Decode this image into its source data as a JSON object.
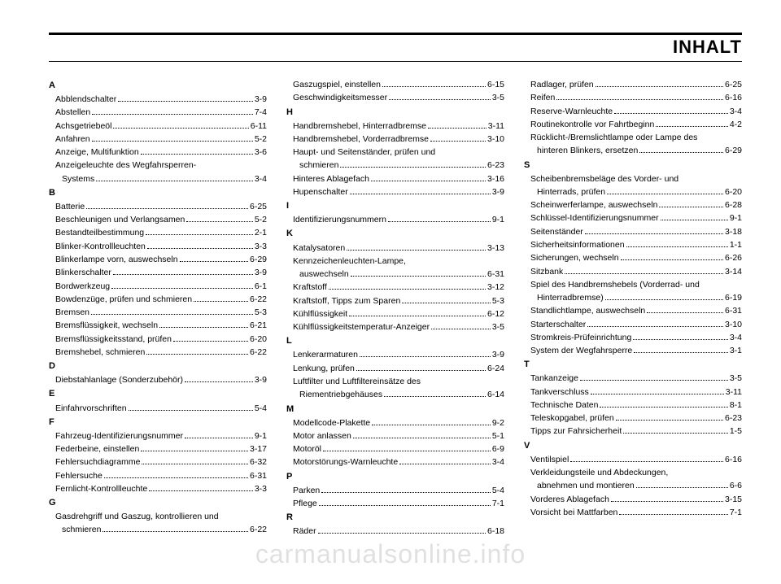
{
  "title": "INHALT",
  "watermark": "carmanualsonline.info",
  "columns": [
    [
      {
        "type": "letter",
        "text": "A"
      },
      {
        "type": "entry",
        "label": "Abblendschalter",
        "page": "3-9"
      },
      {
        "type": "entry",
        "label": "Abstellen",
        "page": "7-4"
      },
      {
        "type": "entry",
        "label": "Achsgetriebeöl",
        "page": "6-11"
      },
      {
        "type": "entry",
        "label": "Anfahren",
        "page": "5-2"
      },
      {
        "type": "entry",
        "label": "Anzeige, Multifunktion",
        "page": "3-6"
      },
      {
        "type": "line",
        "text": "Anzeigeleuchte des Wegfahrsperren-"
      },
      {
        "type": "entry",
        "label": "Systems",
        "page": "3-4",
        "cont": true
      },
      {
        "type": "letter",
        "text": "B"
      },
      {
        "type": "entry",
        "label": "Batterie",
        "page": "6-25"
      },
      {
        "type": "entry",
        "label": "Beschleunigen und Verlangsamen",
        "page": "5-2"
      },
      {
        "type": "entry",
        "label": "Bestandteilbestimmung",
        "page": "2-1"
      },
      {
        "type": "entry",
        "label": "Blinker-Kontrollleuchten",
        "page": "3-3"
      },
      {
        "type": "entry",
        "label": "Blinkerlampe vorn, auswechseln",
        "page": "6-29"
      },
      {
        "type": "entry",
        "label": "Blinkerschalter",
        "page": "3-9"
      },
      {
        "type": "entry",
        "label": "Bordwerkzeug",
        "page": "6-1"
      },
      {
        "type": "entry",
        "label": "Bowdenzüge, prüfen und schmieren",
        "page": "6-22"
      },
      {
        "type": "entry",
        "label": "Bremsen",
        "page": "5-3"
      },
      {
        "type": "entry",
        "label": "Bremsflüssigkeit, wechseln",
        "page": "6-21"
      },
      {
        "type": "entry",
        "label": "Bremsflüssigkeitsstand, prüfen",
        "page": "6-20"
      },
      {
        "type": "entry",
        "label": "Bremshebel, schmieren",
        "page": "6-22"
      },
      {
        "type": "letter",
        "text": "D"
      },
      {
        "type": "entry",
        "label": "Diebstahlanlage (Sonderzubehör)",
        "page": "3-9"
      },
      {
        "type": "letter",
        "text": "E"
      },
      {
        "type": "entry",
        "label": "Einfahrvorschriften",
        "page": "5-4"
      },
      {
        "type": "letter",
        "text": "F"
      },
      {
        "type": "entry",
        "label": "Fahrzeug-Identifizierungsnummer",
        "page": "9-1"
      },
      {
        "type": "entry",
        "label": "Federbeine, einstellen",
        "page": "3-17"
      },
      {
        "type": "entry",
        "label": "Fehlersuchdiagramme",
        "page": "6-32"
      },
      {
        "type": "entry",
        "label": "Fehlersuche",
        "page": "6-31"
      },
      {
        "type": "entry",
        "label": "Fernlicht-Kontrollleuchte",
        "page": "3-3"
      },
      {
        "type": "letter",
        "text": "G"
      },
      {
        "type": "line",
        "text": "Gasdrehgriff und Gaszug, kontrollieren und"
      },
      {
        "type": "entry",
        "label": "schmieren",
        "page": "6-22",
        "cont": true
      }
    ],
    [
      {
        "type": "entry",
        "label": "Gaszugspiel, einstellen",
        "page": "6-15"
      },
      {
        "type": "entry",
        "label": "Geschwindigkeitsmesser",
        "page": "3-5"
      },
      {
        "type": "letter",
        "text": "H"
      },
      {
        "type": "entry",
        "label": "Handbremshebel, Hinterradbremse",
        "page": "3-11"
      },
      {
        "type": "entry",
        "label": "Handbremshebel, Vorderradbremse",
        "page": "3-10"
      },
      {
        "type": "line",
        "text": "Haupt- und Seitenständer, prüfen und"
      },
      {
        "type": "entry",
        "label": "schmieren",
        "page": "6-23",
        "cont": true
      },
      {
        "type": "entry",
        "label": "Hinteres Ablagefach",
        "page": "3-16"
      },
      {
        "type": "entry",
        "label": "Hupenschalter",
        "page": "3-9"
      },
      {
        "type": "letter",
        "text": "I"
      },
      {
        "type": "entry",
        "label": "Identifizierungsnummern",
        "page": "9-1"
      },
      {
        "type": "letter",
        "text": "K"
      },
      {
        "type": "entry",
        "label": "Katalysatoren",
        "page": "3-13"
      },
      {
        "type": "line",
        "text": "Kennzeichenleuchten-Lampe,"
      },
      {
        "type": "entry",
        "label": "auswechseln",
        "page": "6-31",
        "cont": true
      },
      {
        "type": "entry",
        "label": "Kraftstoff",
        "page": "3-12"
      },
      {
        "type": "entry",
        "label": "Kraftstoff, Tipps zum Sparen",
        "page": "5-3"
      },
      {
        "type": "entry",
        "label": "Kühlflüssigkeit",
        "page": "6-12"
      },
      {
        "type": "entry",
        "label": "Kühlflüssigkeitstemperatur-Anzeiger",
        "page": "3-5"
      },
      {
        "type": "letter",
        "text": "L"
      },
      {
        "type": "entry",
        "label": "Lenkerarmaturen",
        "page": "3-9"
      },
      {
        "type": "entry",
        "label": "Lenkung, prüfen",
        "page": "6-24"
      },
      {
        "type": "line",
        "text": "Luftfilter und Luftfiltereinsätze des"
      },
      {
        "type": "entry",
        "label": "Riementriebgehäuses",
        "page": "6-14",
        "cont": true
      },
      {
        "type": "letter",
        "text": "M"
      },
      {
        "type": "entry",
        "label": "Modellcode-Plakette",
        "page": "9-2"
      },
      {
        "type": "entry",
        "label": "Motor anlassen",
        "page": "5-1"
      },
      {
        "type": "entry",
        "label": "Motoröl",
        "page": "6-9"
      },
      {
        "type": "entry",
        "label": "Motorstörungs-Warnleuchte",
        "page": "3-4"
      },
      {
        "type": "letter",
        "text": "P"
      },
      {
        "type": "entry",
        "label": "Parken",
        "page": "5-4"
      },
      {
        "type": "entry",
        "label": "Pflege",
        "page": "7-1"
      },
      {
        "type": "letter",
        "text": "R"
      },
      {
        "type": "entry",
        "label": "Räder",
        "page": "6-18"
      }
    ],
    [
      {
        "type": "entry",
        "label": "Radlager, prüfen",
        "page": "6-25"
      },
      {
        "type": "entry",
        "label": "Reifen",
        "page": "6-16"
      },
      {
        "type": "entry",
        "label": "Reserve-Warnleuchte",
        "page": "3-4"
      },
      {
        "type": "entry",
        "label": "Routinekontrolle vor Fahrtbeginn",
        "page": "4-2"
      },
      {
        "type": "line",
        "text": "Rücklicht-/Bremslichtlampe oder Lampe des"
      },
      {
        "type": "entry",
        "label": "hinteren Blinkers, ersetzen",
        "page": "6-29",
        "cont": true
      },
      {
        "type": "letter",
        "text": "S"
      },
      {
        "type": "line",
        "text": "Scheibenbremsbeläge des Vorder- und"
      },
      {
        "type": "entry",
        "label": "Hinterrads, prüfen",
        "page": "6-20",
        "cont": true
      },
      {
        "type": "entry",
        "label": "Scheinwerferlampe, auswechseln",
        "page": "6-28"
      },
      {
        "type": "entry",
        "label": "Schlüssel-Identifizierungsnummer",
        "page": "9-1"
      },
      {
        "type": "entry",
        "label": "Seitenständer",
        "page": "3-18"
      },
      {
        "type": "entry",
        "label": "Sicherheitsinformationen",
        "page": "1-1"
      },
      {
        "type": "entry",
        "label": "Sicherungen, wechseln",
        "page": "6-26"
      },
      {
        "type": "entry",
        "label": "Sitzbank",
        "page": "3-14"
      },
      {
        "type": "line",
        "text": "Spiel des Handbremshebels (Vorderrad- und"
      },
      {
        "type": "entry",
        "label": "Hinterradbremse)",
        "page": "6-19",
        "cont": true
      },
      {
        "type": "entry",
        "label": "Standlichtlampe, auswechseln",
        "page": "6-31"
      },
      {
        "type": "entry",
        "label": "Starterschalter",
        "page": "3-10"
      },
      {
        "type": "entry",
        "label": "Stromkreis-Prüfeinrichtung",
        "page": "3-4"
      },
      {
        "type": "entry",
        "label": "System der Wegfahrsperre",
        "page": "3-1"
      },
      {
        "type": "letter",
        "text": "T"
      },
      {
        "type": "entry",
        "label": "Tankanzeige",
        "page": "3-5"
      },
      {
        "type": "entry",
        "label": "Tankverschluss",
        "page": "3-11"
      },
      {
        "type": "entry",
        "label": "Technische Daten",
        "page": "8-1"
      },
      {
        "type": "entry",
        "label": "Teleskopgabel, prüfen",
        "page": "6-23"
      },
      {
        "type": "entry",
        "label": "Tipps zur Fahrsicherheit",
        "page": "1-5"
      },
      {
        "type": "letter",
        "text": "V"
      },
      {
        "type": "entry",
        "label": "Ventilspiel",
        "page": "6-16"
      },
      {
        "type": "line",
        "text": "Verkleidungsteile und Abdeckungen,"
      },
      {
        "type": "entry",
        "label": "abnehmen und montieren",
        "page": "6-6",
        "cont": true
      },
      {
        "type": "entry",
        "label": "Vorderes Ablagefach",
        "page": "3-15"
      },
      {
        "type": "entry",
        "label": "Vorsicht bei Mattfarben",
        "page": "7-1"
      }
    ]
  ]
}
